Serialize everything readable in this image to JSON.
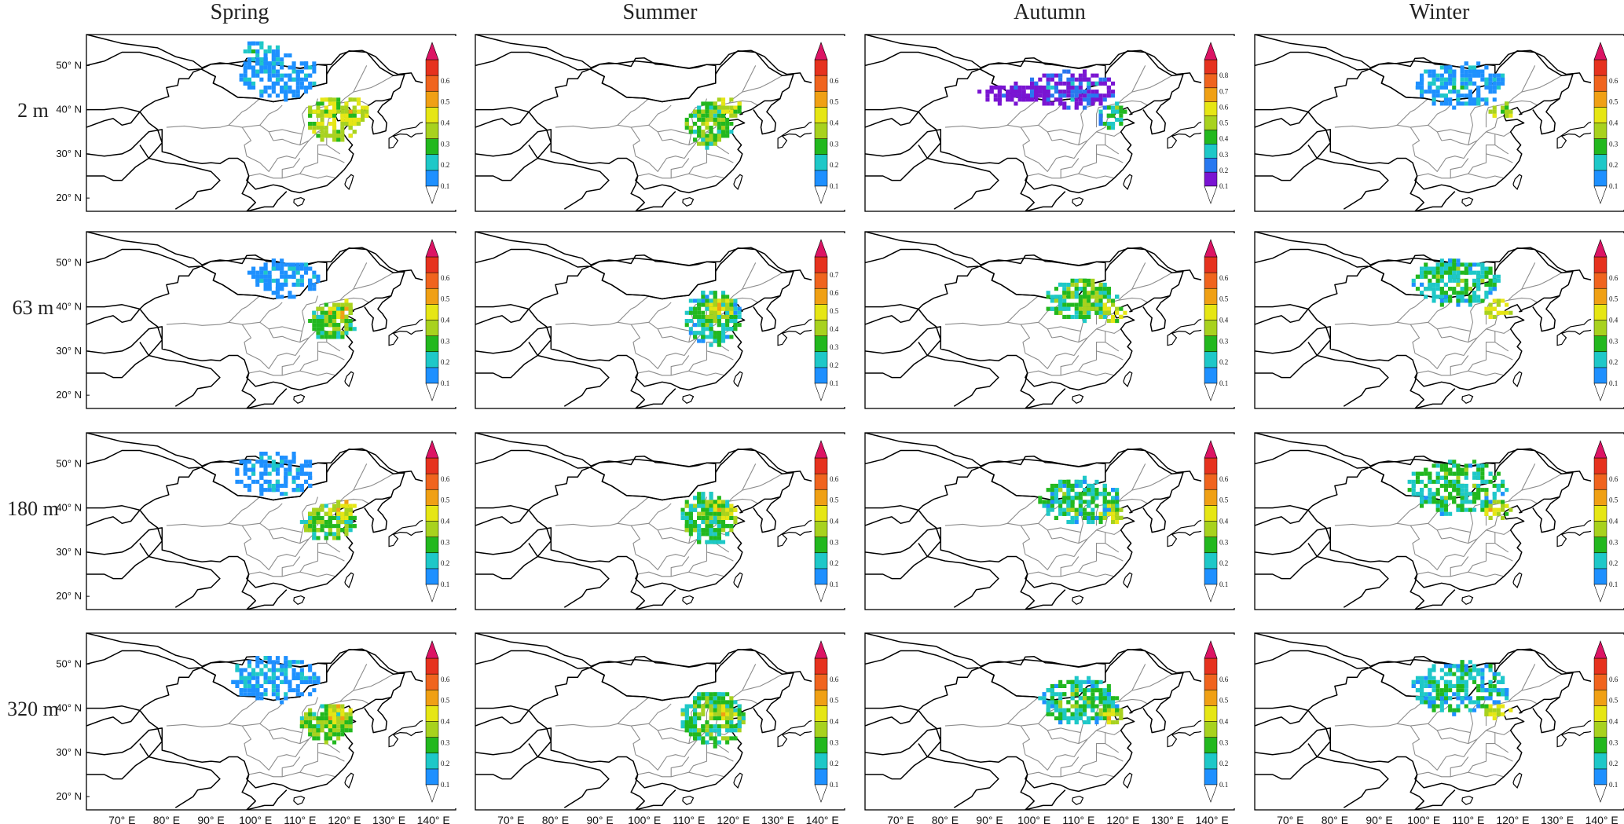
{
  "chart_data": {
    "type": "heatmap",
    "columns": [
      "Spring",
      "Summer",
      "Autumn",
      "Winter"
    ],
    "rows": [
      "2 m",
      "63 m",
      "180 m",
      "320 m"
    ],
    "lat_ticks": [
      "20° N",
      "30° N",
      "40° N",
      "50° N"
    ],
    "lon_ticks": [
      "70° E",
      "80° E",
      "90° E",
      "100° E",
      "110° E",
      "120° E",
      "130° E",
      "140° E"
    ],
    "lon_range": [
      62,
      145
    ],
    "lat_range": [
      17,
      57
    ],
    "grid": false,
    "colorbar": {
      "placement": "right of each panel",
      "palette": [
        "#ffffff",
        "#1e90ff",
        "#1ec8c8",
        "#22b81e",
        "#a8d21e",
        "#e6e614",
        "#f0a014",
        "#f0641e",
        "#e6321e",
        "#dc1464"
      ],
      "autumn_2m_palette": [
        "#ffffff",
        "#7a14d2",
        "#2878f0",
        "#1ec8c8",
        "#22b81e",
        "#a8d21e",
        "#e6e614",
        "#f0a014",
        "#f0641e",
        "#e6321e",
        "#dc1464"
      ]
    },
    "panels": [
      {
        "season": "Spring",
        "height": "2 m",
        "cb_ticks": [
          "0.1",
          "0.2",
          "0.3",
          "0.4",
          "0.5",
          "0.6"
        ],
        "blobs": [
          {
            "lon": 117,
            "lat": 38,
            "rx": 6,
            "ry": 5,
            "level": 4.6,
            "n": 140
          },
          {
            "lon": 105,
            "lat": 48,
            "rx": 9,
            "ry": 5,
            "level": 1.4,
            "n": 160
          },
          {
            "lon": 101,
            "lat": 53,
            "rx": 4,
            "ry": 3,
            "level": 1.8,
            "n": 40
          },
          {
            "lon": 122,
            "lat": 40,
            "rx": 3,
            "ry": 3,
            "level": 5.2,
            "n": 40
          }
        ]
      },
      {
        "season": "Summer",
        "height": "2 m",
        "cb_ticks": [
          "0.1",
          "0.2",
          "0.3",
          "0.4",
          "0.5",
          "0.6"
        ],
        "blobs": [
          {
            "lon": 114,
            "lat": 37,
            "rx": 5,
            "ry": 5,
            "level": 3.8,
            "n": 160
          },
          {
            "lon": 118,
            "lat": 41,
            "rx": 3,
            "ry": 2,
            "level": 4.8,
            "n": 30
          }
        ]
      },
      {
        "season": "Autumn",
        "height": "2 m",
        "cb_ticks": [
          "0.1",
          "0.2",
          "0.3",
          "0.4",
          "0.5",
          "0.6",
          "0.7",
          "0.8"
        ],
        "blobs": [
          {
            "lon": 108,
            "lat": 45,
            "rx": 10,
            "ry": 4,
            "level": 2.0,
            "n": 210
          },
          {
            "lon": 95,
            "lat": 44,
            "rx": 8,
            "ry": 2,
            "level": 1.0,
            "n": 90
          },
          {
            "lon": 117,
            "lat": 39,
            "rx": 3,
            "ry": 3,
            "level": 4.0,
            "n": 40
          }
        ]
      },
      {
        "season": "Winter",
        "height": "2 m",
        "cb_ticks": [
          "0.1",
          "0.2",
          "0.3",
          "0.4",
          "0.5",
          "0.6"
        ],
        "blobs": [
          {
            "lon": 108,
            "lat": 46,
            "rx": 10,
            "ry": 5,
            "level": 1.7,
            "n": 220
          },
          {
            "lon": 117,
            "lat": 40,
            "rx": 3,
            "ry": 2,
            "level": 4.5,
            "n": 25
          }
        ]
      },
      {
        "season": "Spring",
        "height": "63 m",
        "cb_ticks": [
          "0.1",
          "0.2",
          "0.3",
          "0.4",
          "0.5",
          "0.6"
        ],
        "blobs": [
          {
            "lon": 117,
            "lat": 37,
            "rx": 5,
            "ry": 4,
            "level": 3.6,
            "n": 130
          },
          {
            "lon": 106,
            "lat": 47,
            "rx": 8,
            "ry": 4,
            "level": 1.2,
            "n": 140
          },
          {
            "lon": 119,
            "lat": 40,
            "rx": 3,
            "ry": 2,
            "level": 5.2,
            "n": 30
          }
        ]
      },
      {
        "season": "Summer",
        "height": "63 m",
        "cb_ticks": [
          "0.1",
          "0.2",
          "0.3",
          "0.4",
          "0.5",
          "0.6",
          "0.7"
        ],
        "blobs": [
          {
            "lon": 115,
            "lat": 38,
            "rx": 6,
            "ry": 6,
            "level": 3.0,
            "n": 220
          },
          {
            "lon": 117,
            "lat": 40,
            "rx": 3,
            "ry": 2,
            "level": 5.0,
            "n": 35
          }
        ]
      },
      {
        "season": "Autumn",
        "height": "63 m",
        "cb_ticks": [
          "0.1",
          "0.2",
          "0.3",
          "0.4",
          "0.5",
          "0.6"
        ],
        "blobs": [
          {
            "lon": 110,
            "lat": 42,
            "rx": 8,
            "ry": 5,
            "level": 3.4,
            "n": 220
          },
          {
            "lon": 117,
            "lat": 39,
            "rx": 3,
            "ry": 2,
            "level": 5.0,
            "n": 30
          }
        ]
      },
      {
        "season": "Winter",
        "height": "63 m",
        "cb_ticks": [
          "0.1",
          "0.2",
          "0.3",
          "0.4",
          "0.5",
          "0.6"
        ],
        "blobs": [
          {
            "lon": 107,
            "lat": 46,
            "rx": 10,
            "ry": 5,
            "level": 3.0,
            "n": 240
          },
          {
            "lon": 116,
            "lat": 40,
            "rx": 3,
            "ry": 2,
            "level": 5.0,
            "n": 25
          }
        ]
      },
      {
        "season": "Spring",
        "height": "180 m",
        "cb_ticks": [
          "0.1",
          "0.2",
          "0.3",
          "0.4",
          "0.5",
          "0.6"
        ],
        "blobs": [
          {
            "lon": 116,
            "lat": 37,
            "rx": 6,
            "ry": 4,
            "level": 3.8,
            "n": 150
          },
          {
            "lon": 104,
            "lat": 48,
            "rx": 9,
            "ry": 5,
            "level": 1.3,
            "n": 160
          },
          {
            "lon": 119,
            "lat": 40,
            "rx": 3,
            "ry": 2,
            "level": 5.3,
            "n": 30
          }
        ]
      },
      {
        "season": "Summer",
        "height": "180 m",
        "cb_ticks": [
          "0.1",
          "0.2",
          "0.3",
          "0.4",
          "0.5",
          "0.6"
        ],
        "blobs": [
          {
            "lon": 114,
            "lat": 38,
            "rx": 6,
            "ry": 6,
            "level": 3.4,
            "n": 220
          },
          {
            "lon": 117,
            "lat": 40,
            "rx": 3,
            "ry": 2,
            "level": 5.0,
            "n": 30
          }
        ]
      },
      {
        "season": "Autumn",
        "height": "180 m",
        "cb_ticks": [
          "0.1",
          "0.2",
          "0.3",
          "0.4",
          "0.5",
          "0.6"
        ],
        "blobs": [
          {
            "lon": 110,
            "lat": 42,
            "rx": 9,
            "ry": 5,
            "level": 3.0,
            "n": 240
          },
          {
            "lon": 117,
            "lat": 39,
            "rx": 3,
            "ry": 2,
            "level": 4.8,
            "n": 30
          }
        ]
      },
      {
        "season": "Winter",
        "height": "180 m",
        "cb_ticks": [
          "0.1",
          "0.2",
          "0.3",
          "0.4",
          "0.5",
          "0.6"
        ],
        "blobs": [
          {
            "lon": 107,
            "lat": 45,
            "rx": 11,
            "ry": 6,
            "level": 3.0,
            "n": 260
          },
          {
            "lon": 116,
            "lat": 40,
            "rx": 3,
            "ry": 2,
            "level": 5.0,
            "n": 25
          }
        ]
      },
      {
        "season": "Spring",
        "height": "320 m",
        "cb_ticks": [
          "0.1",
          "0.2",
          "0.3",
          "0.4",
          "0.5",
          "0.6"
        ],
        "blobs": [
          {
            "lon": 116,
            "lat": 37,
            "rx": 6,
            "ry": 4,
            "level": 3.8,
            "n": 150
          },
          {
            "lon": 104,
            "lat": 47,
            "rx": 10,
            "ry": 5,
            "level": 1.5,
            "n": 190
          },
          {
            "lon": 119,
            "lat": 39,
            "rx": 3,
            "ry": 2,
            "level": 5.3,
            "n": 30
          }
        ]
      },
      {
        "season": "Summer",
        "height": "320 m",
        "cb_ticks": [
          "0.1",
          "0.2",
          "0.3",
          "0.4",
          "0.5",
          "0.6"
        ],
        "blobs": [
          {
            "lon": 115,
            "lat": 38,
            "rx": 7,
            "ry": 6,
            "level": 3.4,
            "n": 240
          },
          {
            "lon": 117,
            "lat": 40,
            "rx": 3,
            "ry": 2,
            "level": 5.0,
            "n": 30
          }
        ]
      },
      {
        "season": "Autumn",
        "height": "320 m",
        "cb_ticks": [
          "0.1",
          "0.2",
          "0.3",
          "0.4",
          "0.5",
          "0.6"
        ],
        "blobs": [
          {
            "lon": 110,
            "lat": 42,
            "rx": 9,
            "ry": 5,
            "level": 3.0,
            "n": 240
          },
          {
            "lon": 117,
            "lat": 39,
            "rx": 3,
            "ry": 2,
            "level": 5.0,
            "n": 30
          }
        ]
      },
      {
        "season": "Winter",
        "height": "320 m",
        "cb_ticks": [
          "0.1",
          "0.2",
          "0.3",
          "0.4",
          "0.5",
          "0.6"
        ],
        "blobs": [
          {
            "lon": 108,
            "lat": 45,
            "rx": 11,
            "ry": 6,
            "level": 2.6,
            "n": 260
          },
          {
            "lon": 116,
            "lat": 40,
            "rx": 3,
            "ry": 2,
            "level": 5.0,
            "n": 25
          }
        ]
      }
    ]
  }
}
